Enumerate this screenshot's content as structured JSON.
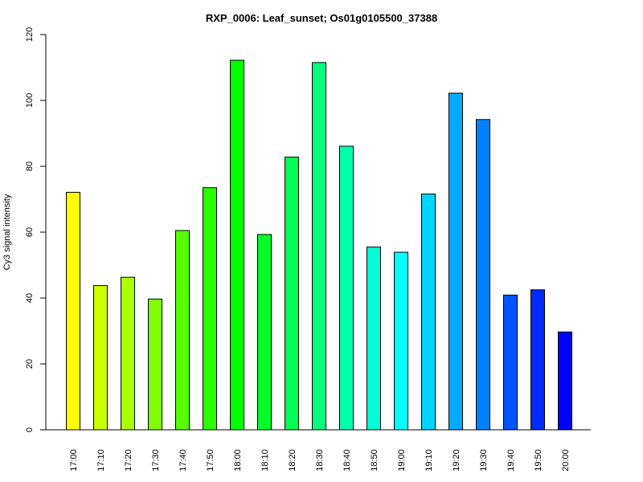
{
  "chart_data": {
    "type": "bar",
    "title": "RXP_0006: Leaf_sunset; Os01g0105500_37388",
    "xlabel": "",
    "ylabel": "Cy3 signal intensity",
    "ylim": [
      0,
      120
    ],
    "yticks": [
      0,
      20,
      40,
      60,
      80,
      100,
      120
    ],
    "grid": false,
    "categories": [
      "17:00",
      "17:10",
      "17:20",
      "17:30",
      "17:40",
      "17:50",
      "18:00",
      "18:10",
      "18:20",
      "18:30",
      "18:40",
      "18:50",
      "19:00",
      "19:10",
      "19:20",
      "19:30",
      "19:40",
      "19:50",
      "20:00"
    ],
    "values": [
      72.1,
      43.8,
      46.3,
      39.7,
      60.5,
      73.5,
      112.2,
      59.3,
      82.8,
      111.5,
      86.1,
      55.5,
      53.9,
      71.6,
      102.2,
      94.2,
      40.9,
      42.5,
      29.7
    ],
    "colors": [
      "#FFFF00",
      "#CCFF00",
      "#AAFF00",
      "#80FF00",
      "#55FF00",
      "#2AFF00",
      "#00FF00",
      "#00FF2A",
      "#00FF55",
      "#00FF80",
      "#00FFAA",
      "#00FFD5",
      "#00FFFF",
      "#00D4FF",
      "#00AAFF",
      "#0080FF",
      "#0055FF",
      "#002AFF",
      "#0000FF"
    ]
  }
}
